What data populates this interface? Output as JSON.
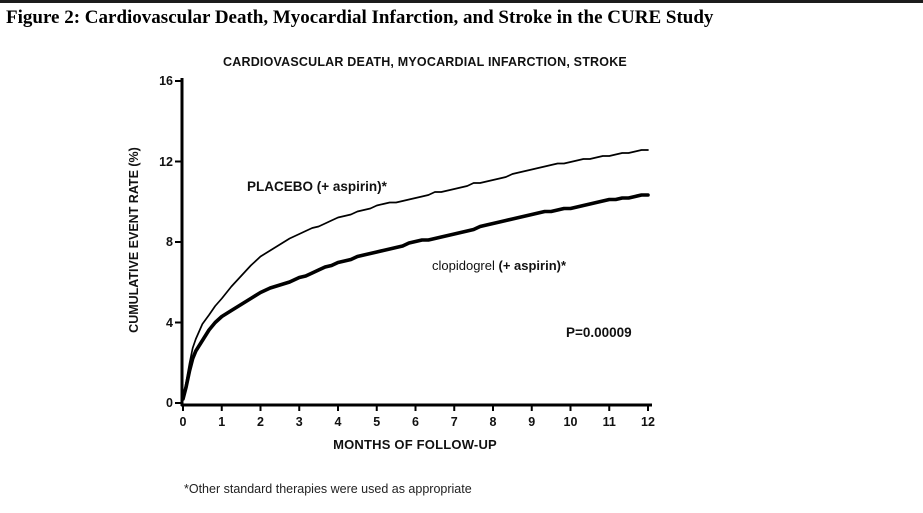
{
  "figure_title": "Figure 2:  Cardiovascular Death, Myocardial Infarction, and Stroke in the CURE Study",
  "footnote": "*Other standard therapies were used as appropriate",
  "labels": {
    "placebo": "PLACEBO (+ aspirin)*",
    "clopidogrel_name": "clopidogrel",
    "clopidogrel_suffix": " (+ aspirin)*",
    "p_value": "P=0.00009"
  },
  "colors": {
    "line": "#000000",
    "text": "#111111",
    "background": "#ffffff"
  },
  "chart_data": {
    "type": "line",
    "title": "CARDIOVASCULAR DEATH, MYOCARDIAL INFARCTION, STROKE",
    "xlabel": "MONTHS OF FOLLOW-UP",
    "ylabel": "CUMULATIVE EVENT RATE (%)",
    "xlim": [
      0,
      12
    ],
    "ylim": [
      0,
      16
    ],
    "xticks": [
      0,
      1,
      2,
      3,
      4,
      5,
      6,
      7,
      8,
      9,
      10,
      11,
      12
    ],
    "yticks": [
      0,
      4,
      8,
      12,
      16
    ],
    "grid": false,
    "legend_position": "inline-curve-labels",
    "annotations": [
      {
        "text": "P=0.00009",
        "x": 10.2,
        "y": 3.6
      },
      {
        "text": "PLACEBO (+ aspirin)*",
        "x": 1.7,
        "y": 10.8
      },
      {
        "text": "clopidogrel (+ aspirin)*",
        "x": 6.4,
        "y": 6.9
      }
    ],
    "series": [
      {
        "name": "PLACEBO (+ aspirin)*",
        "line_weight": "thin",
        "points": [
          [
            0,
            0.2
          ],
          [
            0.08,
            1.0
          ],
          [
            0.17,
            2.0
          ],
          [
            0.25,
            2.7
          ],
          [
            0.33,
            3.2
          ],
          [
            0.5,
            3.9
          ],
          [
            0.67,
            4.4
          ],
          [
            0.83,
            4.8
          ],
          [
            1,
            5.2
          ],
          [
            1.25,
            5.8
          ],
          [
            1.5,
            6.3
          ],
          [
            1.75,
            6.8
          ],
          [
            2,
            7.3
          ],
          [
            2.25,
            7.6
          ],
          [
            2.5,
            7.9
          ],
          [
            2.75,
            8.2
          ],
          [
            3,
            8.4
          ],
          [
            3.5,
            8.8
          ],
          [
            4,
            9.2
          ],
          [
            4.5,
            9.5
          ],
          [
            5,
            9.8
          ],
          [
            5.5,
            10.0
          ],
          [
            6,
            10.2
          ],
          [
            6.5,
            10.45
          ],
          [
            7,
            10.65
          ],
          [
            7.5,
            10.9
          ],
          [
            8,
            11.1
          ],
          [
            8.5,
            11.35
          ],
          [
            9,
            11.6
          ],
          [
            9.5,
            11.8
          ],
          [
            10,
            12.0
          ],
          [
            10.5,
            12.15
          ],
          [
            11,
            12.3
          ],
          [
            11.5,
            12.45
          ],
          [
            12,
            12.6
          ]
        ]
      },
      {
        "name": "clopidogrel (+ aspirin)*",
        "line_weight": "thick",
        "points": [
          [
            0,
            0.2
          ],
          [
            0.08,
            0.8
          ],
          [
            0.17,
            1.6
          ],
          [
            0.25,
            2.2
          ],
          [
            0.33,
            2.6
          ],
          [
            0.5,
            3.1
          ],
          [
            0.67,
            3.6
          ],
          [
            0.83,
            4.0
          ],
          [
            1,
            4.3
          ],
          [
            1.25,
            4.6
          ],
          [
            1.5,
            4.9
          ],
          [
            1.75,
            5.2
          ],
          [
            2,
            5.5
          ],
          [
            2.25,
            5.7
          ],
          [
            2.5,
            5.85
          ],
          [
            2.75,
            6.0
          ],
          [
            3,
            6.2
          ],
          [
            3.5,
            6.6
          ],
          [
            4,
            7.0
          ],
          [
            4.5,
            7.25
          ],
          [
            5,
            7.5
          ],
          [
            5.5,
            7.75
          ],
          [
            6,
            8.0
          ],
          [
            6.5,
            8.2
          ],
          [
            7,
            8.4
          ],
          [
            7.5,
            8.65
          ],
          [
            8,
            8.9
          ],
          [
            8.5,
            9.15
          ],
          [
            9,
            9.4
          ],
          [
            9.5,
            9.55
          ],
          [
            10,
            9.7
          ],
          [
            10.5,
            9.9
          ],
          [
            11,
            10.1
          ],
          [
            11.5,
            10.2
          ],
          [
            12,
            10.35
          ]
        ]
      }
    ]
  }
}
